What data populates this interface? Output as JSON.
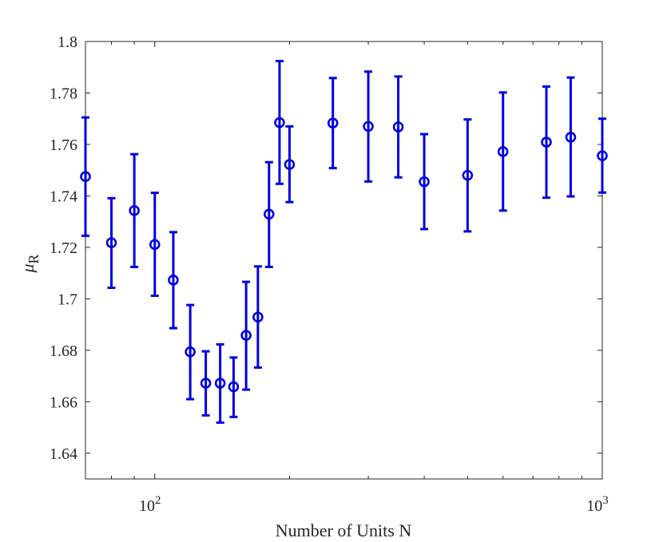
{
  "chart_data": {
    "type": "scatter",
    "title": "",
    "xlabel": "Number of Units N",
    "ylabel": "μ",
    "ylabel_subscript": "R",
    "xscale": "log",
    "xlim": [
      70,
      1000
    ],
    "ylim": [
      1.63,
      1.8
    ],
    "grid": false,
    "legend": "none",
    "y_ticks": [
      "1.64",
      "1.66",
      "1.68",
      "1.7",
      "1.72",
      "1.74",
      "1.76",
      "1.78",
      "1.8"
    ],
    "x_ticks": [
      {
        "value": 100,
        "base": "10",
        "exp": "2"
      },
      {
        "value": 1000,
        "base": "10",
        "exp": "3"
      }
    ],
    "marker_color": "#0000e0",
    "series": [
      {
        "marker": "circle",
        "errorbars": true,
        "points": [
          {
            "x": 70,
            "y": 1.7475,
            "lo": 1.7245,
            "hi": 1.7705
          },
          {
            "x": 80,
            "y": 1.7218,
            "lo": 1.7043,
            "hi": 1.7391
          },
          {
            "x": 90,
            "y": 1.7343,
            "lo": 1.7124,
            "hi": 1.7562
          },
          {
            "x": 100,
            "y": 1.7211,
            "lo": 1.7012,
            "hi": 1.7412
          },
          {
            "x": 110,
            "y": 1.7073,
            "lo": 1.6886,
            "hi": 1.7259
          },
          {
            "x": 120,
            "y": 1.6794,
            "lo": 1.661,
            "hi": 1.6976
          },
          {
            "x": 130,
            "y": 1.6672,
            "lo": 1.6547,
            "hi": 1.6796
          },
          {
            "x": 140,
            "y": 1.6672,
            "lo": 1.6519,
            "hi": 1.6823
          },
          {
            "x": 150,
            "y": 1.6658,
            "lo": 1.6541,
            "hi": 1.6772
          },
          {
            "x": 160,
            "y": 1.6858,
            "lo": 1.6647,
            "hi": 1.7066
          },
          {
            "x": 170,
            "y": 1.6929,
            "lo": 1.6733,
            "hi": 1.7126
          },
          {
            "x": 180,
            "y": 1.7329,
            "lo": 1.7124,
            "hi": 1.7531
          },
          {
            "x": 190,
            "y": 1.7685,
            "lo": 1.7447,
            "hi": 1.7924
          },
          {
            "x": 200,
            "y": 1.7522,
            "lo": 1.7376,
            "hi": 1.767
          },
          {
            "x": 250,
            "y": 1.7683,
            "lo": 1.7508,
            "hi": 1.7858
          },
          {
            "x": 300,
            "y": 1.767,
            "lo": 1.7456,
            "hi": 1.7883
          },
          {
            "x": 350,
            "y": 1.7668,
            "lo": 1.7472,
            "hi": 1.7864
          },
          {
            "x": 400,
            "y": 1.7455,
            "lo": 1.7271,
            "hi": 1.764
          },
          {
            "x": 500,
            "y": 1.748,
            "lo": 1.7262,
            "hi": 1.7697
          },
          {
            "x": 600,
            "y": 1.7572,
            "lo": 1.7343,
            "hi": 1.7802
          },
          {
            "x": 750,
            "y": 1.7609,
            "lo": 1.7393,
            "hi": 1.7825
          },
          {
            "x": 850,
            "y": 1.7628,
            "lo": 1.7398,
            "hi": 1.786
          },
          {
            "x": 1000,
            "y": 1.7556,
            "lo": 1.7413,
            "hi": 1.77
          }
        ]
      }
    ]
  }
}
